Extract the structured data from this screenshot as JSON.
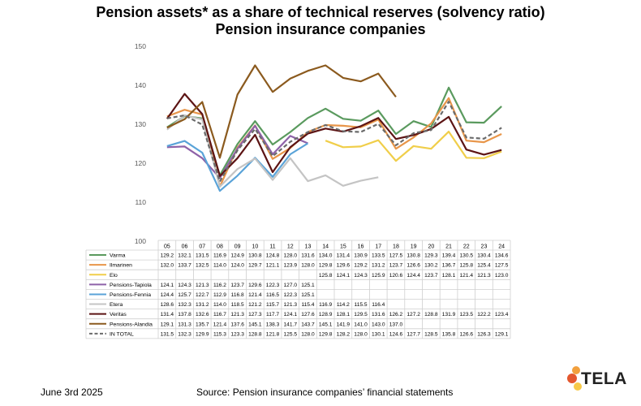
{
  "header": {
    "title": "Pension assets* as a share of technical reserves (solvency ratio)",
    "subtitle": "Pension insurance companies"
  },
  "footer": {
    "date": "June 3rd 2025",
    "source": "Source: Pension insurance companies’ financial statements"
  },
  "logo": {
    "text": "TELA",
    "colors": [
      "#f2a03d",
      "#e4572e",
      "#f7c948"
    ]
  },
  "chart_data": {
    "type": "line",
    "categories": [
      "05",
      "06",
      "07",
      "08",
      "09",
      "10",
      "11",
      "12",
      "13",
      "14",
      "15",
      "16",
      "17",
      "18",
      "19",
      "20",
      "21",
      "22",
      "23",
      "24"
    ],
    "ylim": [
      100,
      150
    ],
    "yticks": [
      "100",
      "110",
      "120",
      "130",
      "140",
      "150"
    ],
    "grid": false,
    "legend": "table-below",
    "series": [
      {
        "name": "Varma",
        "color": "#5a9a5e",
        "dash": false,
        "values": [
          "129.2",
          "132.1",
          "131.5",
          "116.9",
          "124.9",
          "130.8",
          "124.8",
          "128.0",
          "131.6",
          "134.0",
          "131.4",
          "130.9",
          "133.5",
          "127.5",
          "130.8",
          "129.3",
          "139.4",
          "130.5",
          "130.4",
          "134.6"
        ]
      },
      {
        "name": "Ilmarinen",
        "color": "#e8964a",
        "dash": false,
        "values": [
          "132.0",
          "133.7",
          "132.5",
          "114.0",
          "124.0",
          "129.7",
          "121.1",
          "123.9",
          "128.0",
          "129.8",
          "129.6",
          "129.2",
          "131.2",
          "123.7",
          "126.6",
          "130.2",
          "136.7",
          "125.8",
          "125.4",
          "127.5"
        ]
      },
      {
        "name": "Elo",
        "color": "#f0ce4a",
        "dash": false,
        "values": [
          "",
          "",
          "",
          "",
          "",
          "",
          "",
          "",
          "",
          "125.8",
          "124.1",
          "124.3",
          "125.9",
          "120.6",
          "124.4",
          "123.7",
          "128.1",
          "121.4",
          "121.3",
          "123.0"
        ]
      },
      {
        "name": "Pensions-Tapiola",
        "color": "#8e62a8",
        "dash": false,
        "values": [
          "124.1",
          "124.3",
          "121.3",
          "116.2",
          "123.7",
          "129.6",
          "122.3",
          "127.0",
          "125.1",
          "",
          "",
          "",
          "",
          "",
          "",
          "",
          "",
          "",
          "",
          ""
        ]
      },
      {
        "name": "Pensions-Fennia",
        "color": "#5aa3d8",
        "dash": false,
        "values": [
          "124.4",
          "125.7",
          "122.7",
          "112.9",
          "116.8",
          "121.4",
          "116.5",
          "122.3",
          "125.1",
          "",
          "",
          "",
          "",
          "",
          "",
          "",
          "",
          "",
          "",
          ""
        ]
      },
      {
        "name": "Etera",
        "color": "#c4c4c4",
        "dash": false,
        "values": [
          "128.6",
          "132.3",
          "131.2",
          "114.0",
          "118.5",
          "121.2",
          "115.7",
          "121.3",
          "115.4",
          "116.9",
          "114.2",
          "115.5",
          "116.4",
          "",
          "",
          "",
          "",
          "",
          "",
          ""
        ]
      },
      {
        "name": "Veritas",
        "color": "#5c1414",
        "dash": false,
        "values": [
          "131.4",
          "137.8",
          "132.6",
          "116.7",
          "121.3",
          "127.3",
          "117.7",
          "124.1",
          "127.6",
          "128.9",
          "128.1",
          "129.5",
          "131.6",
          "126.2",
          "127.2",
          "128.8",
          "131.9",
          "123.5",
          "122.2",
          "123.4"
        ]
      },
      {
        "name": "Pensions-Alandia",
        "color": "#8b5a1e",
        "dash": false,
        "values": [
          "129.1",
          "131.3",
          "135.7",
          "121.4",
          "137.6",
          "145.1",
          "138.3",
          "141.7",
          "143.7",
          "145.1",
          "141.9",
          "141.0",
          "143.0",
          "137.0",
          "",
          "",
          "",
          "",
          "",
          ""
        ]
      },
      {
        "name": "IN TOTAL",
        "color": "#6b6b6b",
        "dash": true,
        "values": [
          "131.5",
          "132.3",
          "129.9",
          "115.3",
          "123.3",
          "128.8",
          "121.8",
          "125.5",
          "128.0",
          "129.8",
          "128.2",
          "128.0",
          "130.1",
          "124.6",
          "127.7",
          "128.5",
          "135.8",
          "126.6",
          "126.3",
          "129.1"
        ]
      }
    ]
  }
}
